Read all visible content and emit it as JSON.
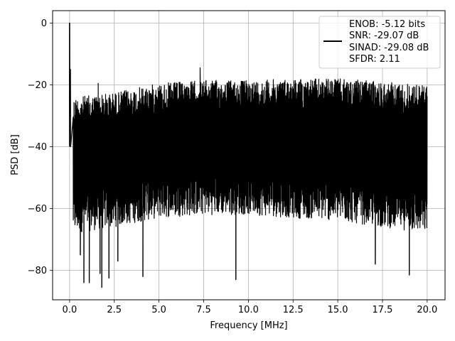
{
  "chart_data": {
    "type": "line",
    "title": "",
    "xlabel": "Frequency [MHz]",
    "ylabel": "PSD [dB]",
    "xlim": [
      -0.95,
      21.0
    ],
    "ylim": [
      -89.5,
      4.0
    ],
    "xticks": [
      0.0,
      2.5,
      5.0,
      7.5,
      10.0,
      12.5,
      15.0,
      17.5,
      20.0
    ],
    "xtick_labels": [
      "0.0",
      "2.5",
      "5.0",
      "7.5",
      "10.0",
      "12.5",
      "15.0",
      "17.5",
      "20.0"
    ],
    "yticks": [
      0,
      -20,
      -40,
      -60,
      -80
    ],
    "ytick_labels": [
      "0",
      "−20",
      "−40",
      "−60",
      "−80"
    ],
    "grid": true,
    "legend_position": "top-right",
    "legend_lines": [
      "ENOB: -5.12 bits",
      "SNR: -29.07 dB",
      "SINAD: -29.08 dB",
      "SFDR: 2.11"
    ],
    "series": [
      {
        "color": "#000000",
        "description": "dense noise-floor PSD spanning 0-20 MHz with a peak at 0 MHz",
        "peak": {
          "x": 0.0,
          "y": 0.0
        },
        "floor_upper_envelope": [
          [
            0.2,
            -24.0
          ],
          [
            2.5,
            -22.5
          ],
          [
            5.0,
            -19.5
          ],
          [
            7.5,
            -18.5
          ],
          [
            10.0,
            -18.5
          ],
          [
            12.5,
            -18.0
          ],
          [
            15.0,
            -18.0
          ],
          [
            17.5,
            -19.0
          ],
          [
            20.0,
            -20.0
          ]
        ],
        "floor_lower_envelope": [
          [
            0.2,
            -68.0
          ],
          [
            2.5,
            -66.0
          ],
          [
            5.0,
            -63.0
          ],
          [
            7.5,
            -62.0
          ],
          [
            10.0,
            -62.0
          ],
          [
            12.5,
            -63.0
          ],
          [
            15.0,
            -64.0
          ],
          [
            17.5,
            -66.0
          ],
          [
            20.0,
            -68.0
          ]
        ],
        "deep_nulls": [
          {
            "x": 0.6,
            "y": -75.0
          },
          {
            "x": 0.8,
            "y": -84.0
          },
          {
            "x": 1.1,
            "y": -84.0
          },
          {
            "x": 1.7,
            "y": -81.0
          },
          {
            "x": 1.8,
            "y": -85.5
          },
          {
            "x": 2.2,
            "y": -82.5
          },
          {
            "x": 2.7,
            "y": -77.0
          },
          {
            "x": 4.1,
            "y": -82.0
          },
          {
            "x": 9.3,
            "y": -83.0
          },
          {
            "x": 17.1,
            "y": -78.0
          },
          {
            "x": 19.0,
            "y": -81.5
          }
        ],
        "notable_spurs": [
          {
            "x": 0.05,
            "y": -15.0
          },
          {
            "x": 1.6,
            "y": -19.5
          },
          {
            "x": 7.3,
            "y": -14.5
          }
        ]
      }
    ]
  }
}
